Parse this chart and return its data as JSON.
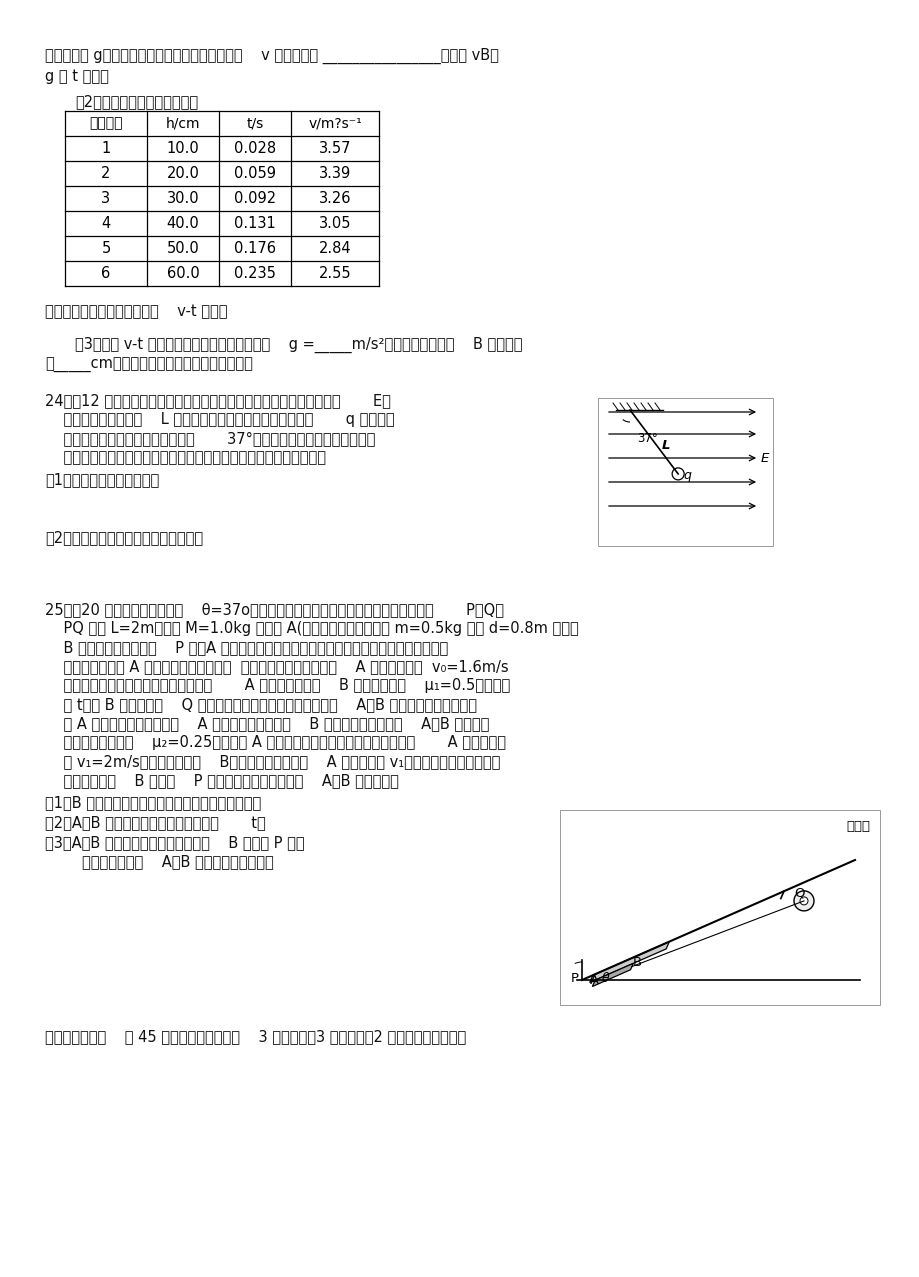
{
  "bg_color": "#ffffff",
  "line1": "力加速度为 g。则小铁球通过两光电门间平均速度    v 的表达式为 ________________。（用 vB、",
  "line2": "g 和 t 表示）",
  "line3": "（2）实验测得的数据如下表：",
  "table_headers": [
    "实验次数",
    "h/cm",
    "t/s",
    "v/m?s⁻¹"
  ],
  "table_data": [
    [
      "1",
      "10.0",
      "0.028",
      "3.57"
    ],
    [
      "2",
      "20.0",
      "0.059",
      "3.39"
    ],
    [
      "3",
      "30.0",
      "0.092",
      "3.26"
    ],
    [
      "4",
      "40.0",
      "0.131",
      "3.05"
    ],
    [
      "5",
      "50.0",
      "0.176",
      "2.84"
    ],
    [
      "6",
      "60.0",
      "0.235",
      "2.55"
    ]
  ],
  "line_after_table": "请在答题卡中的坐标纸上画出    v-t 图像。",
  "line_q3_1": "（3）根据 v-t 图像，可以求得当地重力加速度    g =_____m/s²，试管夹到光电门    B 的距离约",
  "line_q3_2": "为_____cm。（以上结果均保留三位有效数字）",
  "q24_line1": "24．（12 分）如图所示，空间有水平向右的匀强电场，电场场强大小为       E，",
  "q24_line2": "    在电场中用一根长为    L 的不可伸长的轻丝线吊着一电荷量为       q 的小球，",
  "q24_line3": "    小球保持静止时丝线与竖直方向成       37°角，现突然将该电场方向改变为",
  "q24_line4": "    竖直向下且大小不变，不考虑因电场的改变而带来的其他影响，求：",
  "q24_sub1": "（1）小球所受重力的大小；",
  "q24_blank1": "",
  "q24_blank2": "",
  "q24_sub2": "（2）小球经过最低点时对丝线的拉力。",
  "q24_blank3": "",
  "q24_blank4": "",
  "q25_line1": "25．（20 分）如图所示是倾角    θ=37o的固定光滑斜面，两端有垂直于斜面的固定挡板       P、Q，",
  "q25_line2": "    PQ 距离 L=2m，质量 M=1.0kg 的木块 A(可看成质点）放在质量 m=0.5kg 的长 d=0.8m 的木板",
  "q25_line3": "    B 上并一起停靠在挡板    P 处，A 木块与斜面顶端的电动机间用平行于斜面不可伸长的轻绳相",
  "q25_line4": "    连接，现给木块 A 沿斜面向上的初速度，  同时开动电动机保证木块    A 一直以初速度  v₀=1.6m/s",
  "q25_line5": "    沿斜面向上做匀速直线运动，已知木块       A 的下表面与木板    B 间动摩擦因数    μ₁=0.5，经过时",
  "q25_line6": "    间 t，当 B 板右端到达    Q 处时刻，立刻关闭电动机，同时锁定    A、B 物体此时的位置。然后",
  "q25_line7": "    将 A 物体上下面翻转，使得    A 原来的上表面与木板    B 接触，已知翻转后的    A、B 接触面间",
  "q25_line8": "    的动摩擦因数变为    μ₂=0.25，且连接 A 与电动机的绳子仍与斜面平行。现在给       A 向下的初速",
  "q25_line9": "    度 v₁=2m/s，同时释放木板    B，并开动电动机保证    A 木块一直以 v₁沿斜面向下做匀速直线运",
  "q25_line10": "    动，直到木板    B 与挡板    P 接触时关闭电动机并锁定    A、B 位置。求：",
  "q25_sub1": "（1）B 木板沿斜面向上加速运动过程的加速度大小；",
  "q25_sub2": "（2）A、B 沿斜面上升过程所经历的时间       t；",
  "q25_sub3": "（3）A、B 沿斜面向下开始运动到木板    B 左端与 P 接触",
  "q25_sub3b": "        时，这段过程中    A、B 间摩擦产生的热量。",
  "footer": "（二）选考题：    共 45 分。请考生从给出的    3 道物理题、3 道化学题、2 道生物题中每科任选"
}
